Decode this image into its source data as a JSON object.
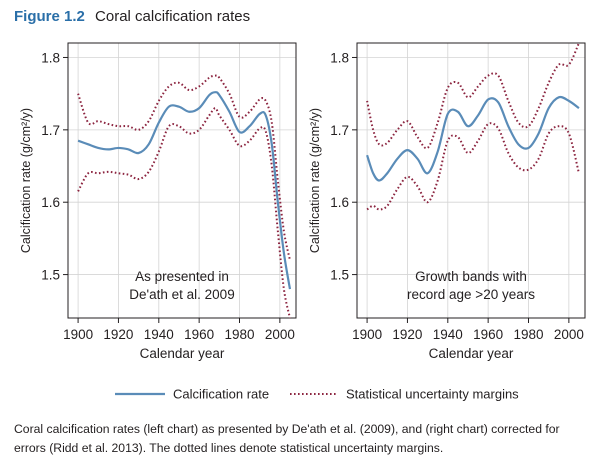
{
  "figure": {
    "number": "Figure 1.2",
    "title": "Coral calcification rates"
  },
  "legend": {
    "solid_label": "Calcification rate",
    "dotted_label": "Statistical uncertainty margins"
  },
  "caption": {
    "line1": "Coral calcification rates (left chart) as presented by De'ath et al. (2009), and (right chart) corrected for",
    "line2": "errors (Ridd et al. 2013). The dotted lines denote statistical uncertainty margins."
  },
  "colors": {
    "rate_line": "#5a8cb8",
    "uncertainty_line": "#8c2540",
    "axis": "#231f20",
    "grid": "#d4d4d4",
    "figure_number": "#2a6fa8"
  },
  "chart_data": [
    {
      "type": "line",
      "annotation": [
        "As presented in",
        "De'ath et al. 2009"
      ],
      "xlabel": "Calendar year",
      "ylabel": "Calcification rate (g/cm²/y)",
      "xlim": [
        1895,
        2008
      ],
      "ylim": [
        1.44,
        1.82
      ],
      "xticks": [
        1900,
        1920,
        1940,
        1960,
        1980,
        2000
      ],
      "yticks": [
        1.5,
        1.6,
        1.7,
        1.8
      ],
      "grid": true,
      "series": [
        {
          "name": "Calcification rate",
          "style": "solid",
          "x": [
            1900,
            1905,
            1910,
            1915,
            1920,
            1925,
            1930,
            1935,
            1940,
            1945,
            1950,
            1955,
            1960,
            1965,
            1968,
            1970,
            1975,
            1980,
            1985,
            1990,
            1993,
            1996,
            1999,
            2002,
            2005
          ],
          "y": [
            1.685,
            1.68,
            1.675,
            1.673,
            1.675,
            1.673,
            1.668,
            1.68,
            1.71,
            1.732,
            1.732,
            1.725,
            1.73,
            1.748,
            1.752,
            1.748,
            1.725,
            1.697,
            1.705,
            1.722,
            1.72,
            1.68,
            1.6,
            1.53,
            1.48
          ]
        },
        {
          "name": "Upper uncertainty margin",
          "style": "dotted",
          "x": [
            1900,
            1905,
            1910,
            1915,
            1920,
            1925,
            1930,
            1935,
            1940,
            1945,
            1950,
            1955,
            1960,
            1965,
            1968,
            1970,
            1975,
            1980,
            1985,
            1990,
            1993,
            1996,
            1999,
            2002,
            2005
          ],
          "y": [
            1.75,
            1.71,
            1.712,
            1.708,
            1.705,
            1.705,
            1.7,
            1.712,
            1.74,
            1.76,
            1.765,
            1.755,
            1.76,
            1.772,
            1.775,
            1.772,
            1.75,
            1.718,
            1.725,
            1.742,
            1.74,
            1.71,
            1.63,
            1.56,
            1.52
          ]
        },
        {
          "name": "Lower uncertainty margin",
          "style": "dotted",
          "x": [
            1900,
            1905,
            1910,
            1915,
            1920,
            1925,
            1930,
            1935,
            1940,
            1945,
            1950,
            1955,
            1960,
            1965,
            1968,
            1970,
            1975,
            1980,
            1985,
            1990,
            1993,
            1996,
            1999,
            2002,
            2005
          ],
          "y": [
            1.615,
            1.64,
            1.64,
            1.642,
            1.64,
            1.638,
            1.632,
            1.642,
            1.67,
            1.705,
            1.705,
            1.695,
            1.7,
            1.72,
            1.73,
            1.72,
            1.7,
            1.678,
            1.685,
            1.702,
            1.698,
            1.65,
            1.56,
            1.48,
            1.44
          ]
        }
      ]
    },
    {
      "type": "line",
      "annotation": [
        "Growth bands with",
        "record age >20 years"
      ],
      "xlabel": "Calendar year",
      "ylabel": "Calcification rate (g/cm²/y)",
      "xlim": [
        1895,
        2008
      ],
      "ylim": [
        1.44,
        1.82
      ],
      "xticks": [
        1900,
        1920,
        1940,
        1960,
        1980,
        2000
      ],
      "yticks": [
        1.5,
        1.6,
        1.7,
        1.8
      ],
      "grid": true,
      "series": [
        {
          "name": "Calcification rate",
          "style": "solid",
          "x": [
            1900,
            1903,
            1906,
            1910,
            1915,
            1920,
            1925,
            1930,
            1935,
            1940,
            1945,
            1950,
            1955,
            1960,
            1965,
            1970,
            1975,
            1980,
            1985,
            1990,
            1995,
            2000,
            2005
          ],
          "y": [
            1.665,
            1.64,
            1.63,
            1.64,
            1.66,
            1.672,
            1.66,
            1.64,
            1.67,
            1.722,
            1.725,
            1.705,
            1.72,
            1.742,
            1.738,
            1.705,
            1.68,
            1.675,
            1.695,
            1.73,
            1.745,
            1.74,
            1.73
          ]
        },
        {
          "name": "Upper uncertainty margin",
          "style": "dotted",
          "x": [
            1900,
            1903,
            1906,
            1910,
            1915,
            1920,
            1925,
            1930,
            1935,
            1940,
            1945,
            1950,
            1955,
            1960,
            1965,
            1970,
            1975,
            1980,
            1985,
            1990,
            1995,
            2000,
            2005
          ],
          "y": [
            1.74,
            1.7,
            1.68,
            1.682,
            1.7,
            1.712,
            1.69,
            1.675,
            1.71,
            1.758,
            1.765,
            1.745,
            1.76,
            1.775,
            1.775,
            1.74,
            1.71,
            1.705,
            1.73,
            1.765,
            1.79,
            1.79,
            1.82
          ]
        },
        {
          "name": "Lower uncertainty margin",
          "style": "dotted",
          "x": [
            1900,
            1903,
            1906,
            1910,
            1915,
            1920,
            1925,
            1930,
            1935,
            1940,
            1945,
            1950,
            1955,
            1960,
            1965,
            1970,
            1975,
            1980,
            1985,
            1990,
            1995,
            2000,
            2005
          ],
          "y": [
            1.59,
            1.595,
            1.59,
            1.595,
            1.618,
            1.635,
            1.622,
            1.6,
            1.63,
            1.685,
            1.69,
            1.668,
            1.685,
            1.708,
            1.702,
            1.668,
            1.648,
            1.645,
            1.66,
            1.695,
            1.705,
            1.695,
            1.64
          ]
        }
      ]
    }
  ]
}
